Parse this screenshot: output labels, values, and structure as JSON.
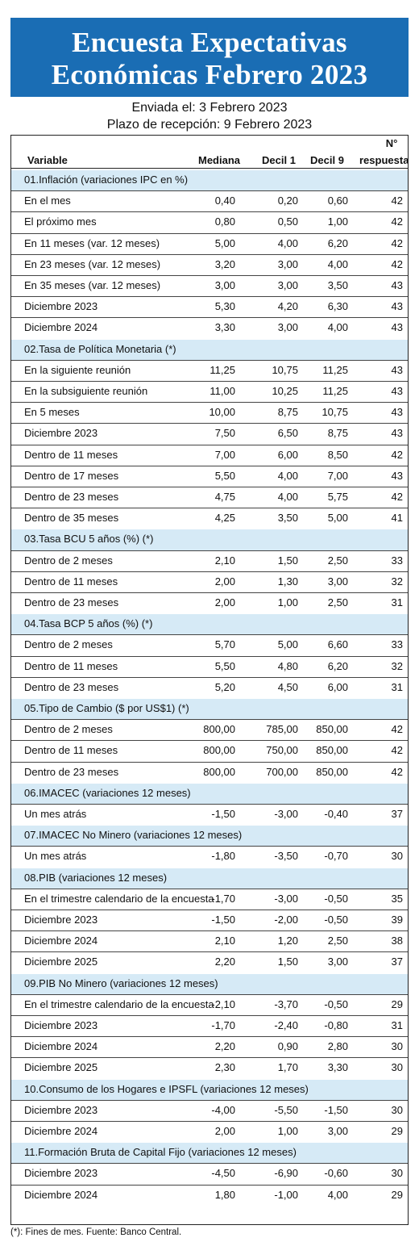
{
  "title": {
    "line1": "Encuesta Expectativas",
    "line2": "Económicas Febrero 2023"
  },
  "subtitle": {
    "sent": "Enviada el: 3 Febrero 2023",
    "deadline": "Plazo de recepción: 9 Febrero 2023"
  },
  "columns": {
    "variable": "Variable",
    "median": "Mediana",
    "decile1": "Decil 1",
    "decile9": "Decil 9",
    "n_line1": "N°",
    "n_line2": "respuestas"
  },
  "sections": [
    {
      "name": "01.Inflación (variaciones IPC en %)",
      "rows": [
        [
          "En el mes",
          "0,40",
          "0,20",
          "0,60",
          "42"
        ],
        [
          "El próximo mes",
          "0,80",
          "0,50",
          "1,00",
          "42"
        ],
        [
          "En 11 meses (var. 12 meses)",
          "5,00",
          "4,00",
          "6,20",
          "42"
        ],
        [
          "En 23 meses (var. 12 meses)",
          "3,20",
          "3,00",
          "4,00",
          "42"
        ],
        [
          "En 35 meses (var. 12 meses)",
          "3,00",
          "3,00",
          "3,50",
          "43"
        ],
        [
          "Diciembre 2023",
          "5,30",
          "4,20",
          "6,30",
          "43"
        ],
        [
          "Diciembre 2024",
          "3,30",
          "3,00",
          "4,00",
          "43"
        ]
      ]
    },
    {
      "name": "02.Tasa de Política Monetaria  (*)",
      "rows": [
        [
          "En la siguiente reunión",
          "11,25",
          "10,75",
          "11,25",
          "43"
        ],
        [
          "En la subsiguiente reunión",
          "11,00",
          "10,25",
          "11,25",
          "43"
        ],
        [
          "En 5 meses",
          "10,00",
          "8,75",
          "10,75",
          "43"
        ],
        [
          "Diciembre 2023",
          "7,50",
          "6,50",
          "8,75",
          "43"
        ],
        [
          "Dentro de 11 meses",
          "7,00",
          "6,00",
          "8,50",
          "42"
        ],
        [
          "Dentro de 17 meses",
          "5,50",
          "4,00",
          "7,00",
          "43"
        ],
        [
          "Dentro de 23 meses",
          "4,75",
          "4,00",
          "5,75",
          "42"
        ],
        [
          "Dentro de 35 meses",
          "4,25",
          "3,50",
          "5,00",
          "41"
        ]
      ]
    },
    {
      "name": "03.Tasa BCU 5 años  (%)  (*)",
      "rows": [
        [
          "Dentro de 2 meses",
          "2,10",
          "1,50",
          "2,50",
          "33"
        ],
        [
          "Dentro de 11 meses",
          "2,00",
          "1,30",
          "3,00",
          "32"
        ],
        [
          "Dentro de 23 meses",
          "2,00",
          "1,00",
          "2,50",
          "31"
        ]
      ]
    },
    {
      "name": "04.Tasa BCP 5 años  (%)  (*)",
      "rows": [
        [
          "Dentro de 2 meses",
          "5,70",
          "5,00",
          "6,60",
          "33"
        ],
        [
          "Dentro de 11 meses",
          "5,50",
          "4,80",
          "6,20",
          "32"
        ],
        [
          "Dentro de 23 meses",
          "5,20",
          "4,50",
          "6,00",
          "31"
        ]
      ]
    },
    {
      "name": "05.Tipo de Cambio  ($ por US$1) (*)",
      "rows": [
        [
          "Dentro de 2 meses",
          "800,00",
          "785,00",
          "850,00",
          "42"
        ],
        [
          "Dentro de 11 meses",
          "800,00",
          "750,00",
          "850,00",
          "42"
        ],
        [
          "Dentro de 23 meses",
          "800,00",
          "700,00",
          "850,00",
          "42"
        ]
      ]
    },
    {
      "name": "06.IMACEC  (variaciones 12 meses)",
      "rows": [
        [
          "Un mes atrás",
          "-1,50",
          "-3,00",
          "-0,40",
          "37"
        ]
      ]
    },
    {
      "name": "07.IMACEC No Minero (variaciones 12 meses)",
      "rows": [
        [
          "Un mes atrás",
          "-1,80",
          "-3,50",
          "-0,70",
          "30"
        ]
      ]
    },
    {
      "name": "08.PIB  (variaciones 12 meses)",
      "rows": [
        [
          "En el trimestre calendario de la encuesta",
          "-1,70",
          "-3,00",
          "-0,50",
          "35"
        ],
        [
          "Diciembre 2023",
          "-1,50",
          "-2,00",
          "-0,50",
          "39"
        ],
        [
          "Diciembre 2024",
          "2,10",
          "1,20",
          "2,50",
          "38"
        ],
        [
          "Diciembre 2025",
          "2,20",
          "1,50",
          "3,00",
          "37"
        ]
      ]
    },
    {
      "name": "09.PIB No Minero (variaciones 12 meses)",
      "rows": [
        [
          "En el trimestre calendario de la encuesta",
          "-2,10",
          "-3,70",
          "-0,50",
          "29"
        ],
        [
          "Diciembre 2023",
          "-1,70",
          "-2,40",
          "-0,80",
          "31"
        ],
        [
          "Diciembre 2024",
          "2,20",
          "0,90",
          "2,80",
          "30"
        ],
        [
          "Diciembre 2025",
          "2,30",
          "1,70",
          "3,30",
          "30"
        ]
      ]
    },
    {
      "name": "10.Consumo de los Hogares e IPSFL  (variaciones 12 meses)",
      "rows": [
        [
          "Diciembre 2023",
          "-4,00",
          "-5,50",
          "-1,50",
          "30"
        ],
        [
          "Diciembre 2024",
          "2,00",
          "1,00",
          "3,00",
          "29"
        ]
      ]
    },
    {
      "name": "11.Formación Bruta de Capital Fijo  (variaciones 12 meses)",
      "rows": [
        [
          "Diciembre 2023",
          "-4,50",
          "-6,90",
          "-0,60",
          "30"
        ],
        [
          "Diciembre 2024",
          "1,80",
          "-1,00",
          "4,00",
          "29"
        ]
      ]
    }
  ],
  "footnote": "(*): Fines de mes. Fuente: Banco Central."
}
